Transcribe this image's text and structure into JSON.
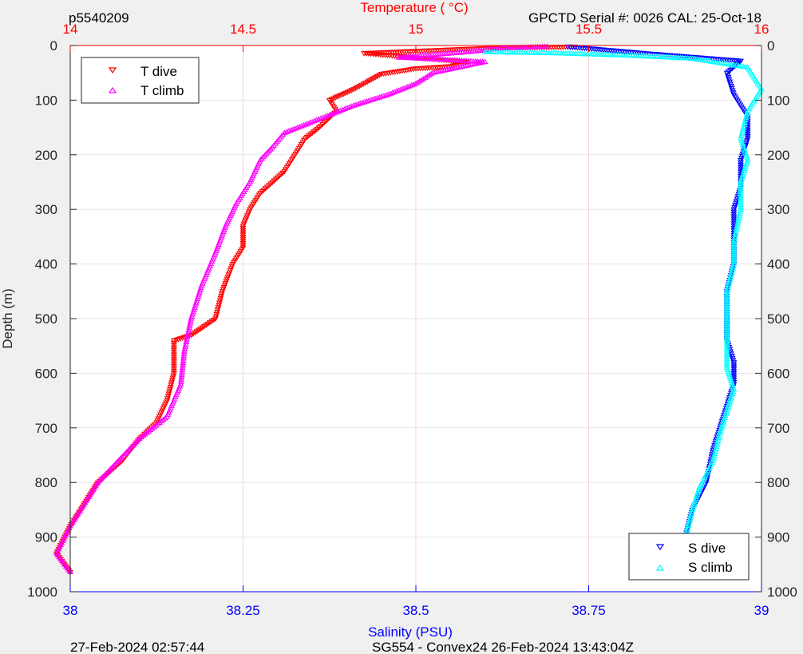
{
  "header": {
    "left": "p5540209",
    "right": "GPCTD Serial #: 0026 CAL: 25-Oct-18"
  },
  "footer": {
    "left": "27-Feb-2024 02:57:44",
    "center": "SG554 - Convex24 26-Feb-2024 13:43:04Z"
  },
  "colors": {
    "temperature_axis": "#ff0000",
    "salinity_axis": "#0000ff",
    "t_dive": "#ff0000",
    "t_climb": "#ff00ff",
    "s_dive": "#0000ff",
    "s_climb": "#00ffff",
    "plot_background": "#ffffff",
    "figure_background": "#f0f0f0"
  },
  "chart_data": {
    "type": "scatter",
    "x_top_label": "Temperature (    °C)",
    "x_top_range": [
      14,
      16
    ],
    "x_top_ticks": [
      "14",
      "14.5",
      "15",
      "15.5",
      "16"
    ],
    "x_bottom_label": "Salinity (PSU)",
    "x_bottom_range": [
      38,
      39
    ],
    "x_bottom_ticks": [
      "38",
      "38.25",
      "38.5",
      "38.75",
      "39"
    ],
    "ylabel": "Depth (m)",
    "y_range": [
      0,
      1000
    ],
    "y_reversed": true,
    "y_ticks": [
      "0",
      "100",
      "200",
      "300",
      "400",
      "500",
      "600",
      "700",
      "800",
      "900",
      "1000"
    ],
    "grid": "vertical",
    "legends": [
      {
        "placement": "top-left",
        "entries": [
          "T dive",
          "T climb"
        ]
      },
      {
        "placement": "bottom-right",
        "entries": [
          "S dive",
          "S climb"
        ]
      }
    ],
    "series": [
      {
        "name": "T dive",
        "axis": "temperature",
        "marker": "triangle-down",
        "points": [
          [
            15.46,
            2
          ],
          [
            15.2,
            5
          ],
          [
            15.0,
            10
          ],
          [
            14.85,
            14
          ],
          [
            15.15,
            30
          ],
          [
            15.1,
            38
          ],
          [
            15.0,
            42
          ],
          [
            14.9,
            52
          ],
          [
            14.82,
            80
          ],
          [
            14.75,
            100
          ],
          [
            14.77,
            120
          ],
          [
            14.72,
            150
          ],
          [
            14.68,
            170
          ],
          [
            14.62,
            230
          ],
          [
            14.55,
            270
          ],
          [
            14.52,
            300
          ],
          [
            14.5,
            330
          ],
          [
            14.5,
            370
          ],
          [
            14.47,
            400
          ],
          [
            14.44,
            450
          ],
          [
            14.42,
            500
          ],
          [
            14.35,
            530
          ],
          [
            14.3,
            540
          ],
          [
            14.3,
            600
          ],
          [
            14.28,
            650
          ],
          [
            14.25,
            690
          ],
          [
            14.2,
            720
          ],
          [
            14.15,
            760
          ],
          [
            14.08,
            800
          ],
          [
            14.05,
            830
          ],
          [
            14.0,
            880
          ],
          [
            13.96,
            930
          ],
          [
            14.0,
            964
          ]
        ]
      },
      {
        "name": "T climb",
        "axis": "temperature",
        "marker": "triangle-up",
        "points": [
          [
            15.38,
            2
          ],
          [
            15.25,
            5
          ],
          [
            15.15,
            12
          ],
          [
            14.95,
            22
          ],
          [
            15.2,
            30
          ],
          [
            15.05,
            50
          ],
          [
            15.0,
            70
          ],
          [
            14.92,
            90
          ],
          [
            14.82,
            110
          ],
          [
            14.7,
            140
          ],
          [
            14.62,
            160
          ],
          [
            14.58,
            190
          ],
          [
            14.55,
            210
          ],
          [
            14.52,
            250
          ],
          [
            14.48,
            290
          ],
          [
            14.45,
            330
          ],
          [
            14.42,
            380
          ],
          [
            14.38,
            440
          ],
          [
            14.35,
            500
          ],
          [
            14.33,
            560
          ],
          [
            14.32,
            620
          ],
          [
            14.28,
            680
          ],
          [
            14.2,
            720
          ],
          [
            14.14,
            760
          ],
          [
            14.08,
            800
          ],
          [
            14.05,
            830
          ],
          [
            14.0,
            880
          ],
          [
            13.96,
            930
          ],
          [
            14.0,
            964
          ]
        ]
      },
      {
        "name": "S dive",
        "axis": "salinity",
        "marker": "triangle-down",
        "points": [
          [
            38.72,
            2
          ],
          [
            38.84,
            15
          ],
          [
            38.97,
            28
          ],
          [
            38.95,
            50
          ],
          [
            38.96,
            90
          ],
          [
            38.98,
            130
          ],
          [
            38.98,
            170
          ],
          [
            38.97,
            210
          ],
          [
            38.97,
            260
          ],
          [
            38.96,
            300
          ],
          [
            38.96,
            360
          ],
          [
            38.96,
            400
          ],
          [
            38.95,
            450
          ],
          [
            38.95,
            500
          ],
          [
            38.95,
            540
          ],
          [
            38.96,
            580
          ],
          [
            38.96,
            620
          ],
          [
            38.95,
            660
          ],
          [
            38.94,
            700
          ],
          [
            38.93,
            740
          ],
          [
            38.92,
            800
          ],
          [
            38.9,
            850
          ],
          [
            38.89,
            900
          ],
          [
            38.88,
            964
          ]
        ]
      },
      {
        "name": "S climb",
        "axis": "salinity",
        "marker": "triangle-up",
        "points": [
          [
            38.6,
            12
          ],
          [
            38.7,
            14
          ],
          [
            38.8,
            18
          ],
          [
            38.9,
            24
          ],
          [
            38.98,
            40
          ],
          [
            39.0,
            80
          ],
          [
            38.98,
            120
          ],
          [
            38.97,
            170
          ],
          [
            38.98,
            210
          ],
          [
            38.97,
            250
          ],
          [
            38.97,
            300
          ],
          [
            38.96,
            360
          ],
          [
            38.96,
            400
          ],
          [
            38.95,
            450
          ],
          [
            38.95,
            500
          ],
          [
            38.95,
            550
          ],
          [
            38.95,
            590
          ],
          [
            38.96,
            630
          ],
          [
            38.95,
            670
          ],
          [
            38.94,
            710
          ],
          [
            38.93,
            760
          ],
          [
            38.91,
            810
          ],
          [
            38.9,
            850
          ],
          [
            38.89,
            900
          ],
          [
            38.88,
            964
          ]
        ]
      }
    ]
  }
}
